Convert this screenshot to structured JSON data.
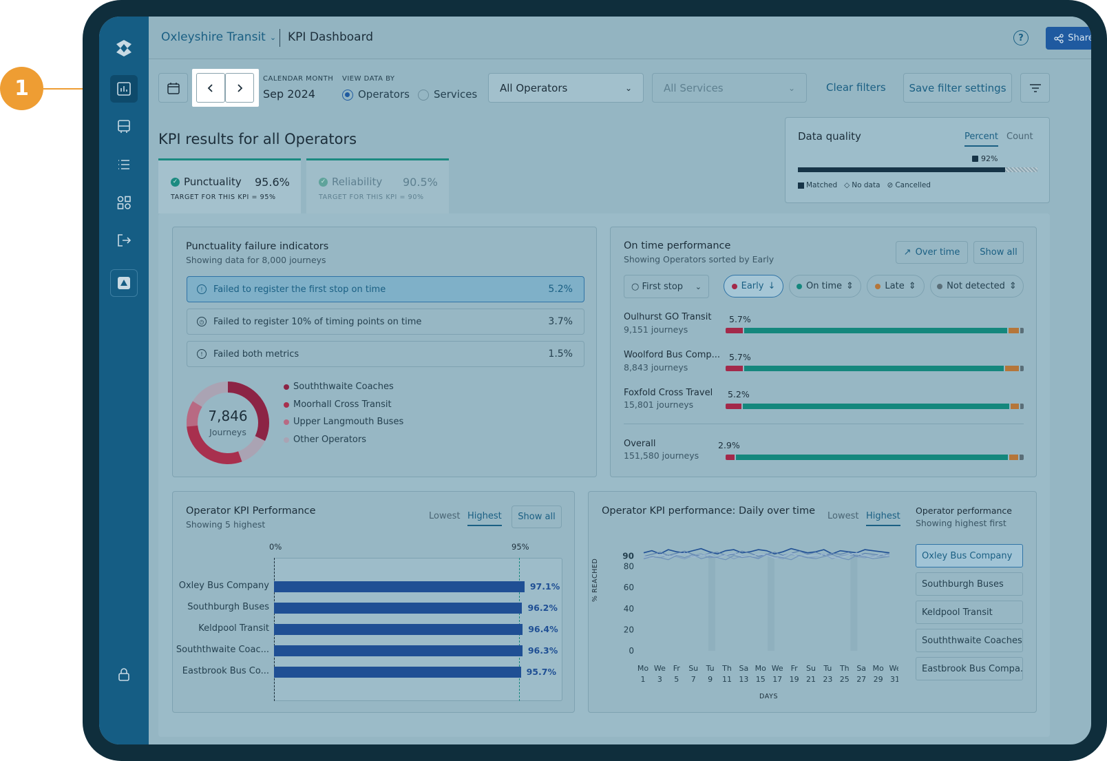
{
  "callout": {
    "number": "1"
  },
  "header": {
    "org": "Oxleyshire Transit",
    "title": "KPI Dashboard",
    "share_label": "Share",
    "help_label": "?"
  },
  "filters": {
    "calendar_label": "CALENDAR MONTH",
    "month": "Sep 2024",
    "view_label": "VIEW DATA BY",
    "view_options": [
      "Operators",
      "Services"
    ],
    "view_selected": "Operators",
    "operators_select": "All Operators",
    "services_select": "All Services",
    "clear_label": "Clear filters",
    "save_label": "Save filter settings"
  },
  "kpi": {
    "heading": "KPI results for all Operators",
    "tabs": [
      {
        "name": "Punctuality",
        "value": "95.6%",
        "target": "TARGET FOR THIS KPI = 95%"
      },
      {
        "name": "Reliability",
        "value": "90.5%",
        "target": "TARGET FOR THIS KPI = 90%"
      }
    ]
  },
  "data_quality": {
    "title": "Data quality",
    "tabs": [
      "Percent",
      "Count"
    ],
    "active": "Percent",
    "value_label": "92%",
    "matched_fraction": 0.92,
    "legend": [
      "Matched",
      "No data",
      "Cancelled"
    ]
  },
  "failure": {
    "title": "Punctuality failure indicators",
    "subtitle": "Showing data for 8,000 journeys",
    "rows": [
      {
        "label": "Failed to register the first stop on time",
        "value": "5.2%"
      },
      {
        "label": "Failed to register 10% of timing points on time",
        "value": "3.7%"
      },
      {
        "label": "Failed both metrics",
        "value": "1.5%"
      }
    ],
    "donut_value": "7,846",
    "donut_label": "Journeys",
    "legend": [
      "Souththwaite Coaches",
      "Moorhall Cross Transit",
      "Upper Langmouth Buses",
      "Other Operators"
    ],
    "colors": [
      "#8c2445",
      "#a8304e",
      "#b86a83",
      "#aaa3b3"
    ]
  },
  "ontime": {
    "title": "On time performance",
    "subtitle": "Showing Operators sorted by Early",
    "btn_over_time": "Over time",
    "btn_show_all": "Show all",
    "stop_filter": "First stop",
    "pills": [
      "Early",
      "On time",
      "Late",
      "Not detected"
    ],
    "rows": [
      {
        "name": "Oulhurst GO Transit",
        "sub": "9,151 journeys",
        "pct": "5.7%",
        "early": 5.7,
        "ontime": 88,
        "late": 3.5,
        "nd": 1.2
      },
      {
        "name": "Woolford Bus Comp...",
        "sub": "8,843 journeys",
        "pct": "5.7%",
        "early": 5.7,
        "ontime": 86,
        "late": 4.5,
        "nd": 1.2
      },
      {
        "name": "Foxfold Cross Travel",
        "sub": "15,801 journeys",
        "pct": "5.2%",
        "early": 5.2,
        "ontime": 89,
        "late": 2.6,
        "nd": 1.2
      }
    ],
    "overall": {
      "name": "Overall",
      "sub": "151,580 journeys",
      "pct": "2.9%",
      "early": 2.9,
      "ontime": 91,
      "late": 3,
      "nd": 1.5
    },
    "colors": {
      "early": "#a3294a",
      "ontime": "#14877d",
      "late": "#b5763a",
      "nd": "#5a6e78"
    }
  },
  "opkpi": {
    "title": "Operator KPI Performance",
    "subtitle": "Showing 5 highest",
    "toggles": [
      "Lowest",
      "Highest"
    ],
    "active": "Highest",
    "show_all": "Show all",
    "axis": [
      "0%",
      "95%"
    ],
    "bars": [
      {
        "name": "Oxley Bus Company",
        "value": 97.1,
        "label": "97.1%"
      },
      {
        "name": "Southburgh Buses",
        "value": 96.2,
        "label": "96.2%"
      },
      {
        "name": "Keldpool Transit",
        "value": 96.4,
        "label": "96.4%"
      },
      {
        "name": "Souththwaite Coac...",
        "value": 96.3,
        "label": "96.3%"
      },
      {
        "name": "Eastbrook Bus Co...",
        "value": 95.7,
        "label": "95.7%"
      }
    ]
  },
  "daily": {
    "title": "Operator KPI performance: Daily over time",
    "toggles": [
      "Lowest",
      "Highest"
    ],
    "active": "Highest",
    "side_title": "Operator performance",
    "side_sub": "Showing highest first",
    "operators": [
      "Oxley Bus Company",
      "Southburgh Buses",
      "Keldpool Transit",
      "Souththwaite Coaches",
      "Eastbrook Bus Compa..."
    ],
    "ylabel": "% REACHED",
    "xlabel": "DAYS",
    "yticks": [
      "90",
      "80",
      "60",
      "40",
      "20",
      "0"
    ],
    "xdays": [
      "Mo",
      "We",
      "Fr",
      "Su",
      "Tu",
      "Th",
      "Sa",
      "Mo",
      "We",
      "Fr",
      "Su",
      "Tu",
      "Th",
      "Sa",
      "Mo",
      "We"
    ],
    "xnums": [
      "1",
      "3",
      "5",
      "7",
      "9",
      "11",
      "13",
      "15",
      "17",
      "19",
      "21",
      "23",
      "25",
      "27",
      "29",
      "31"
    ]
  }
}
